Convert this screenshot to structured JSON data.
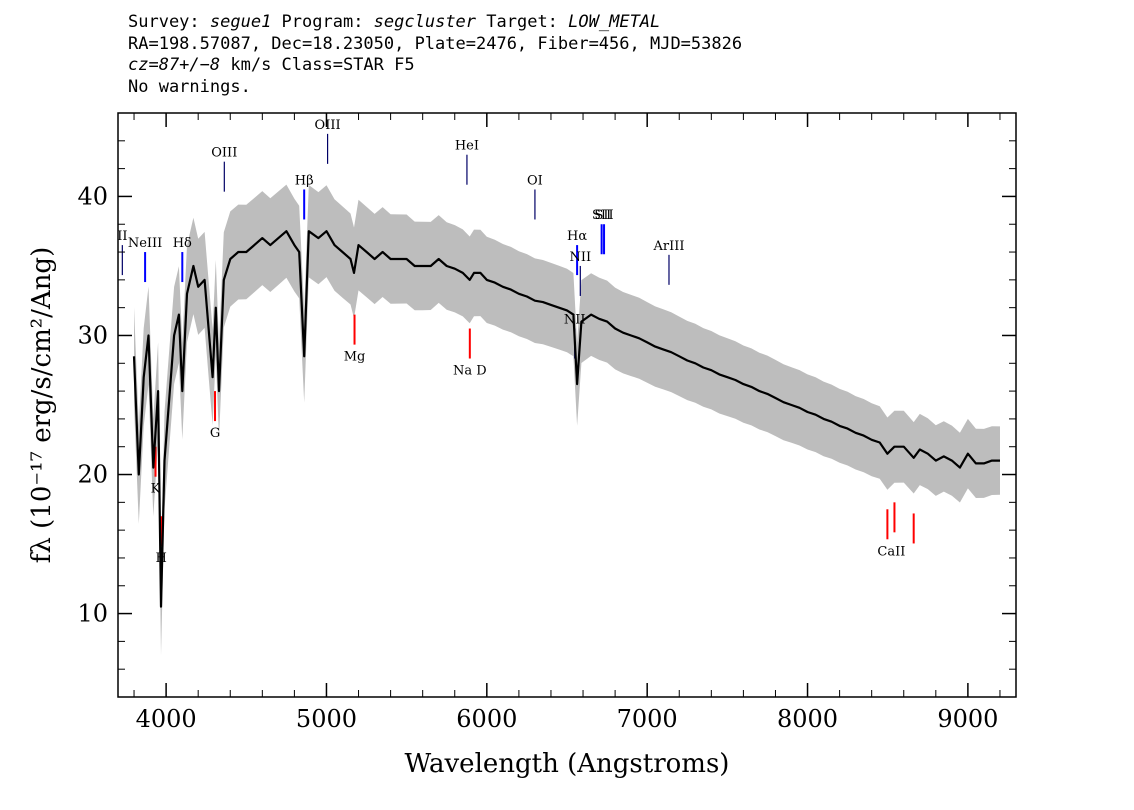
{
  "header": {
    "line1": {
      "survey_label": "Survey: ",
      "survey": "segue1",
      "program_label": " Program: ",
      "program": "segcluster",
      "target_label": " Target: ",
      "target": "LOW_METAL"
    },
    "line2": "RA=198.57087, Dec=18.23050, Plate=2476, Fiber=456, MJD=53826",
    "line3": {
      "cz_label": "cz=87+/−8",
      "cz_units": " km/s Class=STAR F5"
    },
    "line4": "No warnings."
  },
  "chart_data": {
    "type": "line",
    "xlabel": "Wavelength (Angstroms)",
    "ylabel": "fλ (10⁻¹⁷ erg/s/cm²/Ang)",
    "xlim": [
      3700,
      9300
    ],
    "ylim": [
      4,
      46
    ],
    "x_ticks": [
      4000,
      5000,
      6000,
      7000,
      8000,
      9000
    ],
    "y_ticks": [
      10,
      20,
      30,
      40
    ],
    "grid": false,
    "series": [
      {
        "color": "#000000",
        "x": [
          3800,
          3830,
          3860,
          3890,
          3920,
          3950,
          3968,
          3990,
          4010,
          4050,
          4080,
          4101,
          4130,
          4170,
          4200,
          4240,
          4290,
          4310,
          4330,
          4360,
          4400,
          4450,
          4500,
          4550,
          4600,
          4650,
          4700,
          4750,
          4800,
          4830,
          4861,
          4890,
          4950,
          5000,
          5050,
          5100,
          5150,
          5172,
          5200,
          5250,
          5300,
          5350,
          5400,
          5450,
          5500,
          5550,
          5600,
          5650,
          5700,
          5750,
          5800,
          5850,
          5893,
          5920,
          5960,
          6000,
          6050,
          6100,
          6150,
          6200,
          6250,
          6300,
          6350,
          6400,
          6450,
          6500,
          6540,
          6563,
          6590,
          6650,
          6700,
          6750,
          6800,
          6850,
          6900,
          6950,
          7000,
          7050,
          7100,
          7150,
          7200,
          7250,
          7300,
          7350,
          7400,
          7450,
          7500,
          7550,
          7600,
          7650,
          7700,
          7750,
          7800,
          7850,
          7900,
          7950,
          8000,
          8050,
          8100,
          8150,
          8200,
          8250,
          8300,
          8350,
          8400,
          8450,
          8498,
          8542,
          8600,
          8662,
          8700,
          8750,
          8800,
          8850,
          8900,
          8950,
          9000,
          9050,
          9100,
          9150,
          9200
        ],
        "y": [
          28.5,
          20.0,
          27.0,
          30.0,
          20.5,
          26.0,
          10.5,
          21.0,
          24.0,
          30.0,
          31.5,
          26.0,
          33.0,
          35.0,
          33.5,
          34.0,
          27.0,
          32.0,
          26.0,
          34.0,
          35.5,
          36.0,
          36.0,
          36.5,
          37.0,
          36.5,
          37.0,
          37.5,
          36.5,
          36.0,
          28.5,
          37.5,
          37.0,
          37.5,
          36.5,
          36.0,
          35.5,
          34.5,
          36.5,
          36.0,
          35.5,
          36.0,
          35.5,
          35.5,
          35.5,
          35.0,
          35.0,
          35.0,
          35.5,
          35.0,
          34.8,
          34.5,
          34.0,
          34.5,
          34.5,
          34.0,
          33.8,
          33.5,
          33.3,
          33.0,
          32.8,
          32.5,
          32.4,
          32.2,
          32.0,
          31.8,
          31.5,
          26.5,
          31.0,
          31.5,
          31.2,
          31.0,
          30.5,
          30.2,
          30.0,
          29.8,
          29.5,
          29.2,
          29.0,
          28.8,
          28.5,
          28.2,
          28.0,
          27.7,
          27.5,
          27.2,
          27.0,
          26.8,
          26.5,
          26.3,
          26.0,
          25.8,
          25.5,
          25.2,
          25.0,
          24.8,
          24.5,
          24.3,
          24.0,
          23.8,
          23.5,
          23.3,
          23.0,
          22.8,
          22.5,
          22.3,
          21.5,
          22.0,
          22.0,
          21.2,
          21.8,
          21.5,
          21.0,
          21.3,
          21.0,
          20.5,
          21.5,
          20.8,
          20.8,
          21.0,
          21.0
        ]
      }
    ],
    "error_band": {
      "color": "#bdbdbd",
      "half_width_at_4000": 3.5,
      "half_width_at_9000": 2.5
    },
    "emission_lines": [
      {
        "label": "NeIII",
        "x": 3869
      },
      {
        "label": "Hδ",
        "x": 4101
      },
      {
        "label": "OIII",
        "x": 4363
      },
      {
        "label": "Hβ",
        "x": 4861
      },
      {
        "label": "OIII",
        "x": 5007
      },
      {
        "label": "HeI",
        "x": 5876
      },
      {
        "label": "OI",
        "x": 6300
      },
      {
        "label": "NII",
        "x": 6548
      },
      {
        "label": "Hα",
        "x": 6563
      },
      {
        "label": "NII",
        "x": 6583
      },
      {
        "label": "SII",
        "x": 6716
      },
      {
        "label": "SII",
        "x": 6731
      },
      {
        "label": "ArIII",
        "x": 7136
      },
      {
        "label": "II",
        "x": 3727
      }
    ],
    "absorption_lines": [
      {
        "label": "K",
        "x": 3934
      },
      {
        "label": "H",
        "x": 3969
      },
      {
        "label": "G",
        "x": 4305
      },
      {
        "label": "Mg",
        "x": 5175
      },
      {
        "label": "Na D",
        "x": 5894
      },
      {
        "label": "CaII",
        "x": 8498
      },
      {
        "label": "CaII",
        "x": 8542
      },
      {
        "label": "CaII",
        "x": 8662
      }
    ],
    "colors": {
      "spectrum": "#000000",
      "error_band": "#bdbdbd",
      "emission_strong": "#0000ff",
      "emission_weak": "#000066",
      "absorption": "#ff0000"
    }
  }
}
